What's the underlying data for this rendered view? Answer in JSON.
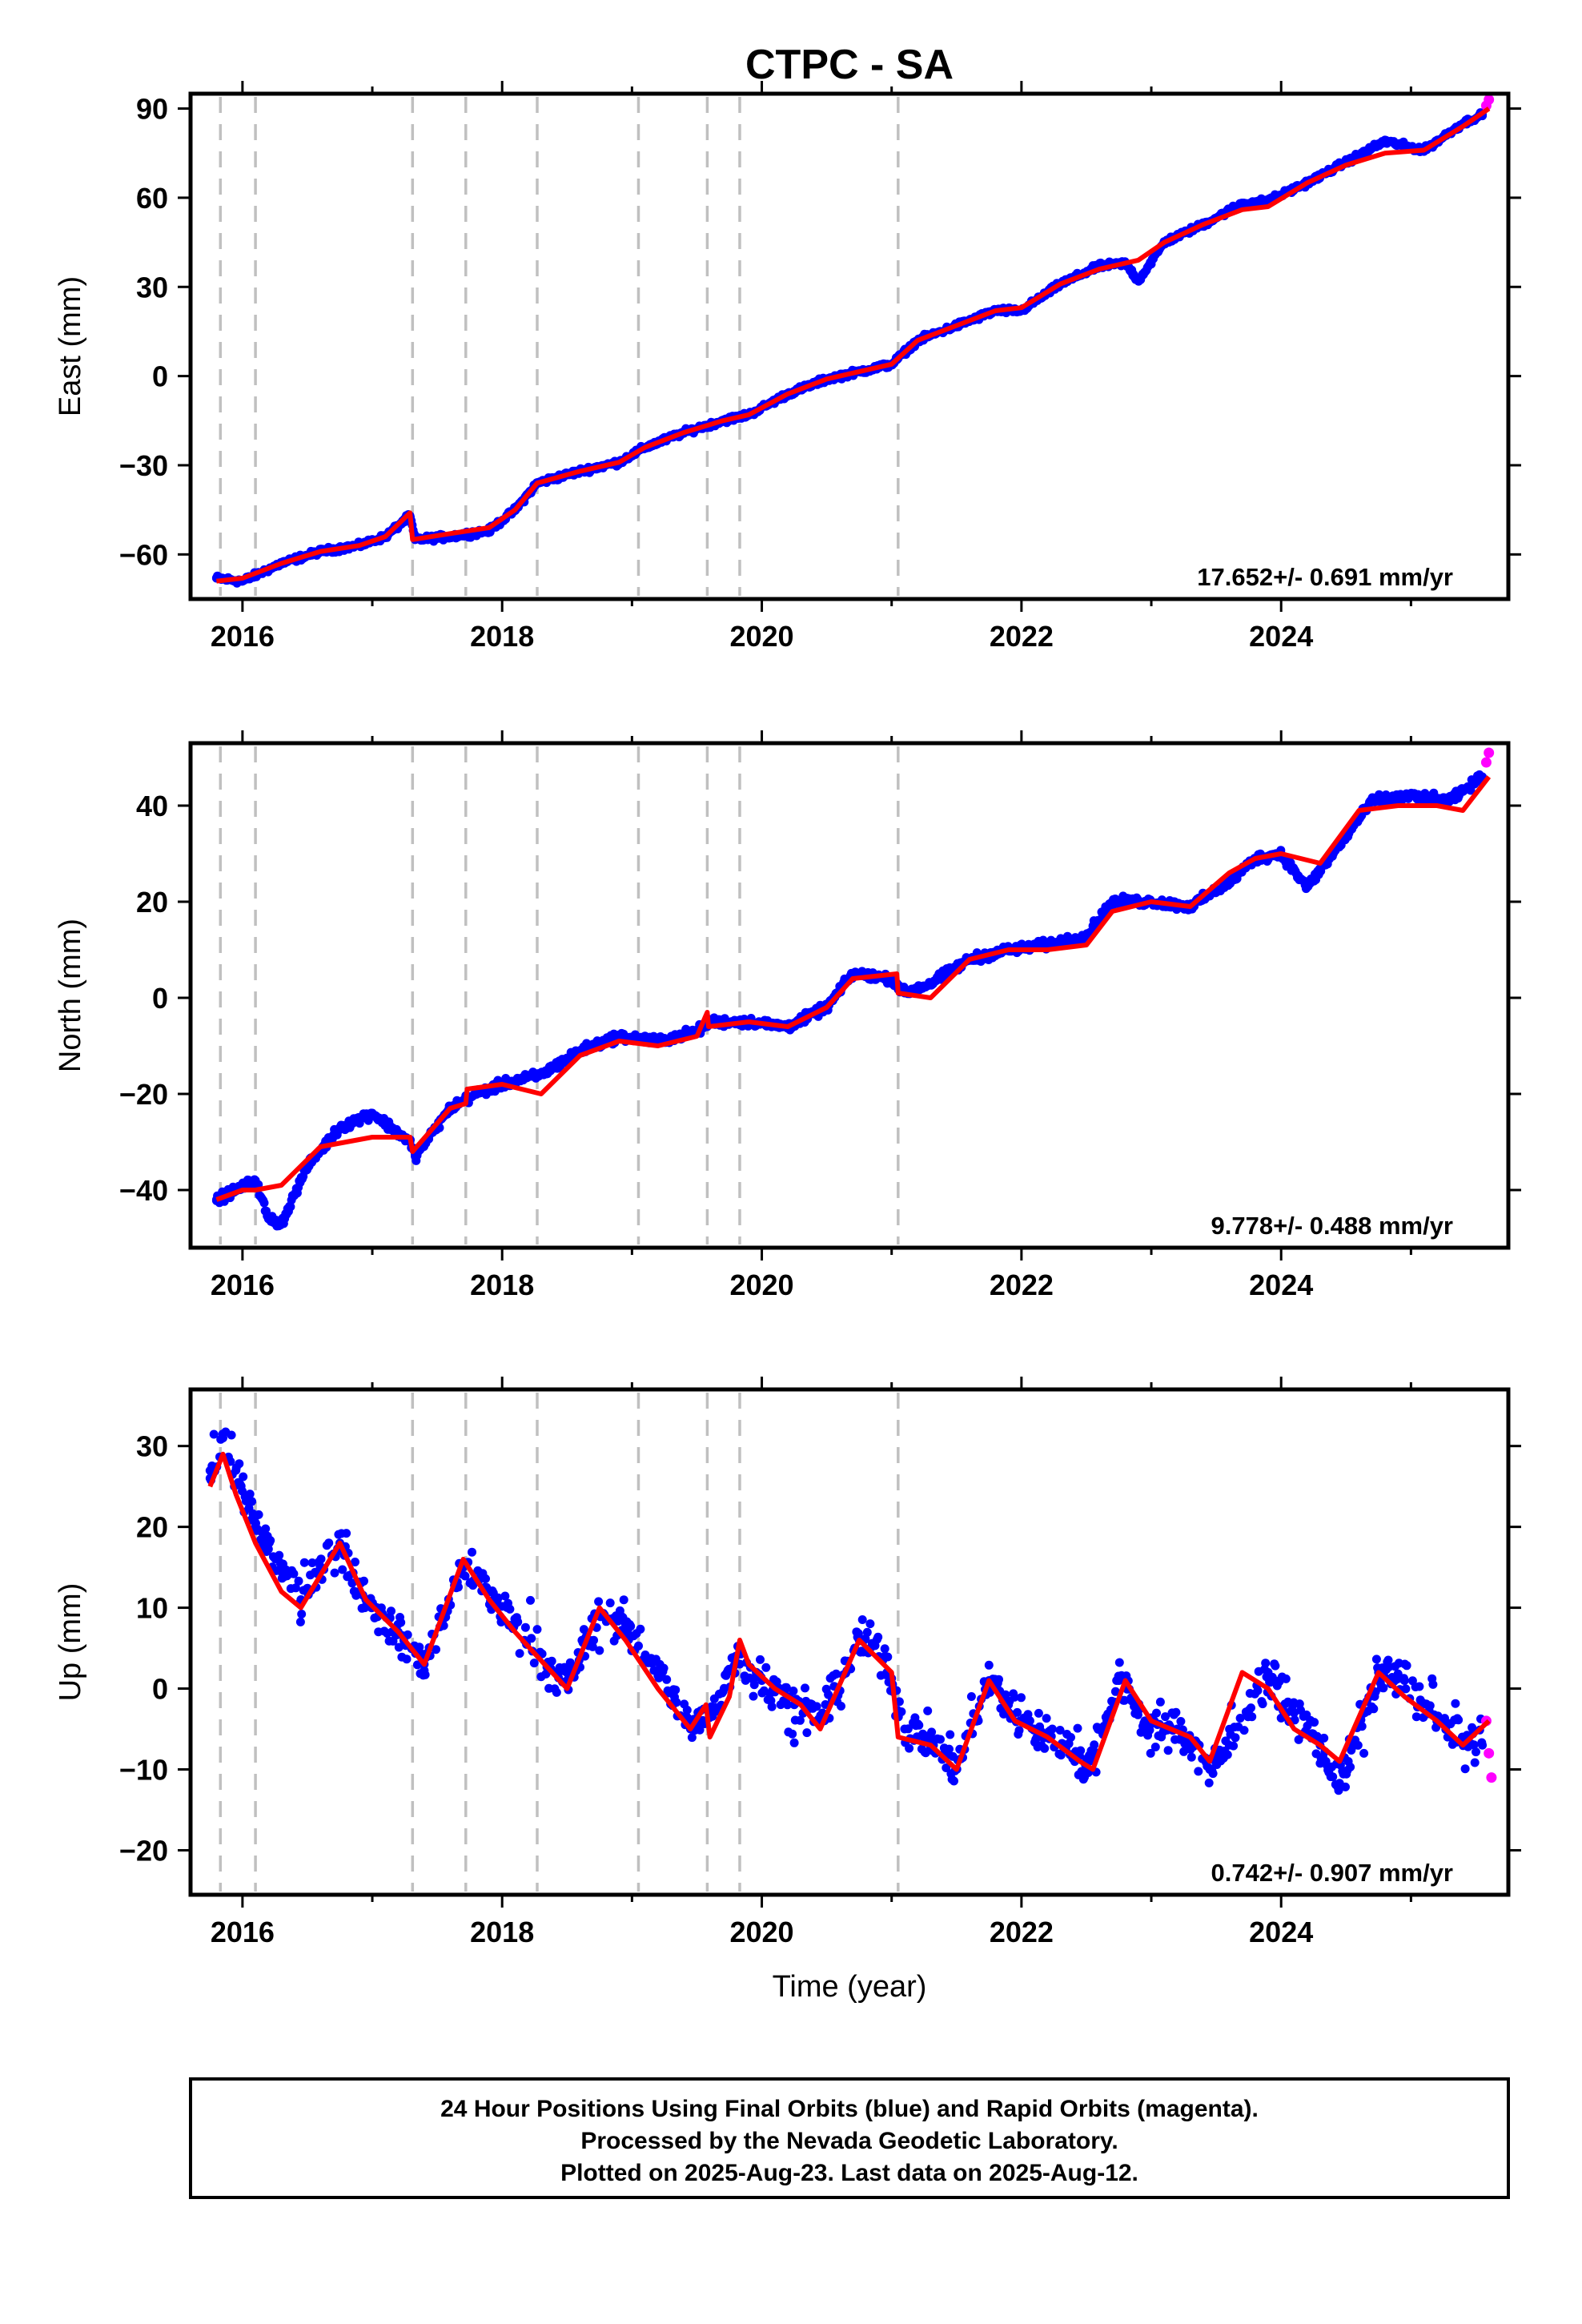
{
  "chart_data": {
    "title": "CTPC - SA",
    "type": "scatter",
    "x_label": "Time (year)",
    "x_range": [
      2015.6,
      2025.75
    ],
    "x_ticks": [
      2016,
      2018,
      2020,
      2022,
      2024
    ],
    "x_ticks_labels": [
      "2016",
      "2018",
      "2020",
      "2022",
      "2024"
    ],
    "x_minor_ticks": [
      2017,
      2019,
      2021,
      2023,
      2025
    ],
    "event_lines": [
      2015.83,
      2016.1,
      2017.31,
      2017.72,
      2018.27,
      2019.05,
      2019.58,
      2019.83,
      2021.05
    ],
    "grid": false,
    "legend": "none",
    "colors": {
      "final_orbits": "#0000ff",
      "rapid_orbits": "#ff00ff",
      "model": "#ff0000",
      "event_lines": "#c0c0c0",
      "axes": "#000000"
    },
    "panels": [
      {
        "ylabel": "East (mm)",
        "ylim": [
          -75,
          95
        ],
        "yticks": [
          -60,
          -30,
          0,
          30,
          60,
          90
        ],
        "yticks_labels": [
          "−60",
          "−30",
          "0",
          "30",
          "60",
          "90"
        ],
        "rate_text": "17.652+/- 0.691 mm/yr",
        "series": [
          {
            "name": "Final Orbits",
            "color": "blue",
            "x": [
              2015.8,
              2016.0,
              2016.3,
              2016.6,
              2016.9,
              2017.1,
              2017.29,
              2017.33,
              2017.6,
              2017.9,
              2018.1,
              2018.27,
              2018.6,
              2018.9,
              2019.1,
              2019.4,
              2019.7,
              2019.9,
              2020.2,
              2020.5,
              2020.8,
              2021.0,
              2021.2,
              2021.5,
              2021.8,
              2022.0,
              2022.3,
              2022.6,
              2022.8,
              2022.9,
              2023.1,
              2023.4,
              2023.7,
              2023.9,
              2024.2,
              2024.5,
              2024.8,
              2025.1,
              2025.4,
              2025.55
            ],
            "y": [
              -68,
              -69,
              -63,
              -59,
              -57,
              -54,
              -47,
              -55,
              -54,
              -52,
              -45,
              -36,
              -32,
              -29,
              -24,
              -19,
              -15,
              -13,
              -6,
              -1,
              2,
              4,
              12,
              17,
              22,
              22,
              31,
              37,
              38,
              32,
              45,
              51,
              58,
              59,
              65,
              72,
              79,
              76,
              85,
              88
            ]
          },
          {
            "name": "Rapid Orbits",
            "color": "magenta",
            "x": [
              2025.58,
              2025.6
            ],
            "y": [
              91,
              93
            ]
          },
          {
            "name": "Model",
            "color": "red",
            "x": [
              2015.8,
              2016.0,
              2016.3,
              2016.6,
              2016.9,
              2017.1,
              2017.29,
              2017.31,
              2017.6,
              2017.9,
              2018.1,
              2018.27,
              2018.6,
              2018.9,
              2019.1,
              2019.4,
              2019.7,
              2019.9,
              2020.2,
              2020.5,
              2020.8,
              2021.0,
              2021.2,
              2021.5,
              2021.8,
              2022.0,
              2022.3,
              2022.6,
              2022.8,
              2022.9,
              2023.1,
              2023.4,
              2023.7,
              2023.9,
              2024.2,
              2024.5,
              2024.8,
              2025.1,
              2025.4,
              2025.6
            ],
            "y": [
              -69,
              -68,
              -63,
              -59,
              -57,
              -54,
              -46,
              -55,
              -53,
              -51,
              -45,
              -36,
              -32,
              -29,
              -24,
              -19,
              -15,
              -13,
              -6,
              -1,
              2,
              4,
              12,
              17,
              22,
              23,
              31,
              36,
              38,
              39,
              45,
              51,
              56,
              57,
              65,
              71,
              75,
              76,
              84,
              90
            ]
          }
        ]
      },
      {
        "ylabel": "North (mm)",
        "ylim": [
          -52,
          53
        ],
        "yticks": [
          -40,
          -20,
          0,
          20,
          40
        ],
        "yticks_labels": [
          "−40",
          "−20",
          "0",
          "20",
          "40"
        ],
        "rate_text": "9.778+/- 0.488 mm/yr",
        "series": [
          {
            "name": "Final Orbits",
            "color": "blue",
            "x": [
              2015.8,
              2015.95,
              2016.1,
              2016.2,
              2016.3,
              2016.5,
              2016.75,
              2017.0,
              2017.29,
              2017.33,
              2017.6,
              2017.8,
              2018.0,
              2018.3,
              2018.6,
              2018.9,
              2019.2,
              2019.5,
              2019.6,
              2019.9,
              2020.2,
              2020.5,
              2020.7,
              2021.0,
              2021.1,
              2021.3,
              2021.6,
              2021.9,
              2022.2,
              2022.5,
              2022.7,
              2023.0,
              2023.3,
              2023.6,
              2023.8,
              2024.0,
              2024.2,
              2024.4,
              2024.7,
              2025.0,
              2025.3,
              2025.55
            ],
            "y": [
              -42,
              -40,
              -38,
              -46,
              -47,
              -35,
              -27,
              -24,
              -30,
              -33,
              -23,
              -20,
              -18,
              -16,
              -11,
              -8,
              -9,
              -7,
              -5,
              -5,
              -6,
              -2,
              5,
              4,
              1,
              3,
              8,
              10,
              11,
              13,
              20,
              20,
              19,
              24,
              29,
              30,
              23,
              30,
              41,
              42,
              41,
              46
            ]
          },
          {
            "name": "Rapid Orbits",
            "color": "magenta",
            "x": [
              2025.58,
              2025.6
            ],
            "y": [
              49,
              51
            ]
          },
          {
            "name": "Model",
            "color": "red",
            "x": [
              2015.8,
              2016.0,
              2016.1,
              2016.3,
              2016.6,
              2017.0,
              2017.29,
              2017.31,
              2017.6,
              2017.72,
              2017.73,
              2018.0,
              2018.3,
              2018.6,
              2018.9,
              2019.2,
              2019.5,
              2019.58,
              2019.59,
              2019.9,
              2020.2,
              2020.5,
              2020.7,
              2021.04,
              2021.05,
              2021.3,
              2021.6,
              2021.9,
              2022.2,
              2022.5,
              2022.7,
              2023.0,
              2023.3,
              2023.6,
              2023.8,
              2024.0,
              2024.3,
              2024.6,
              2024.9,
              2025.2,
              2025.4,
              2025.6
            ],
            "y": [
              -42,
              -40,
              -40,
              -39,
              -31,
              -29,
              -29,
              -32,
              -23,
              -22,
              -19,
              -18,
              -20,
              -12,
              -9,
              -10,
              -8,
              -3,
              -6,
              -5,
              -6,
              -2,
              4,
              5,
              1,
              0,
              8,
              10,
              10,
              11,
              18,
              20,
              19,
              26,
              29,
              30,
              28,
              39,
              40,
              40,
              39,
              46
            ]
          }
        ]
      },
      {
        "ylabel": "Up (mm)",
        "ylim": [
          -25.5,
          37
        ],
        "yticks": [
          -20,
          -10,
          0,
          10,
          20,
          30
        ],
        "yticks_labels": [
          "−20",
          "−10",
          "0",
          "10",
          "20",
          "30"
        ],
        "rate_text": "0.742+/- 0.907 mm/yr",
        "series": [
          {
            "name": "Final Orbits",
            "color": "blue",
            "x": [
              2015.75,
              2015.85,
              2015.95,
              2016.1,
              2016.3,
              2016.45,
              2016.75,
              2016.95,
              2017.2,
              2017.4,
              2017.7,
              2017.9,
              2018.1,
              2018.35,
              2018.5,
              2018.75,
              2018.95,
              2019.2,
              2019.45,
              2019.6,
              2019.8,
              2020.0,
              2020.25,
              2020.45,
              2020.75,
              2020.95,
              2021.1,
              2021.3,
              2021.5,
              2021.75,
              2021.9,
              2022.1,
              2022.35,
              2022.5,
              2022.75,
              2022.95,
              2023.2,
              2023.45,
              2023.6,
              2023.9,
              2024.1,
              2024.3,
              2024.45,
              2024.75,
              2024.95,
              2025.2,
              2025.4,
              2025.55
            ],
            "y": [
              26,
              31,
              27,
              20,
              15,
              11,
              18,
              11,
              7,
              3,
              15,
              12,
              8,
              3,
              1,
              9,
              8,
              2,
              -5,
              -3,
              4,
              1,
              -2,
              -4,
              6,
              4,
              -5,
              -6,
              -10,
              1,
              -2,
              -5,
              -7,
              -10,
              1,
              -4,
              -5,
              -10,
              -7,
              2,
              -3,
              -7,
              -12,
              2,
              1,
              -4,
              -6,
              -7
            ]
          },
          {
            "name": "Rapid Orbits",
            "color": "magenta",
            "x": [
              2025.58,
              2025.6,
              2025.62
            ],
            "y": [
              -4,
              -8,
              -11
            ]
          },
          {
            "name": "Model",
            "color": "red",
            "x": [
              2015.75,
              2015.85,
              2015.95,
              2016.1,
              2016.3,
              2016.45,
              2016.75,
              2016.95,
              2017.2,
              2017.4,
              2017.7,
              2017.9,
              2018.1,
              2018.27,
              2018.5,
              2018.75,
              2018.95,
              2019.2,
              2019.45,
              2019.57,
              2019.6,
              2019.75,
              2019.83,
              2019.9,
              2020.1,
              2020.3,
              2020.45,
              2020.75,
              2021.0,
              2021.05,
              2021.3,
              2021.5,
              2021.75,
              2021.95,
              2022.2,
              2022.45,
              2022.55,
              2022.8,
              2023.0,
              2023.3,
              2023.45,
              2023.7,
              2023.9,
              2024.1,
              2024.3,
              2024.45,
              2024.75,
              2024.95,
              2025.2,
              2025.4,
              2025.6
            ],
            "y": [
              25,
              29,
              24,
              18,
              12,
              10,
              18,
              11,
              7,
              3,
              16,
              11,
              7,
              4,
              0,
              10,
              6,
              0,
              -5,
              -2,
              -6,
              -1,
              6,
              3,
              0,
              -2,
              -5,
              6,
              2,
              -6,
              -7,
              -10,
              1,
              -4,
              -6,
              -9,
              -10,
              1,
              -4,
              -6,
              -9,
              2,
              0,
              -5,
              -7,
              -9,
              2,
              -1,
              -4,
              -7,
              -4
            ]
          }
        ]
      }
    ],
    "footer_lines": [
      "24 Hour Positions Using Final Orbits (blue) and Rapid Orbits (magenta).",
      "Processed by the Nevada Geodetic Laboratory.",
      "Plotted on 2025-Aug-23. Last data on 2025-Aug-12."
    ]
  }
}
